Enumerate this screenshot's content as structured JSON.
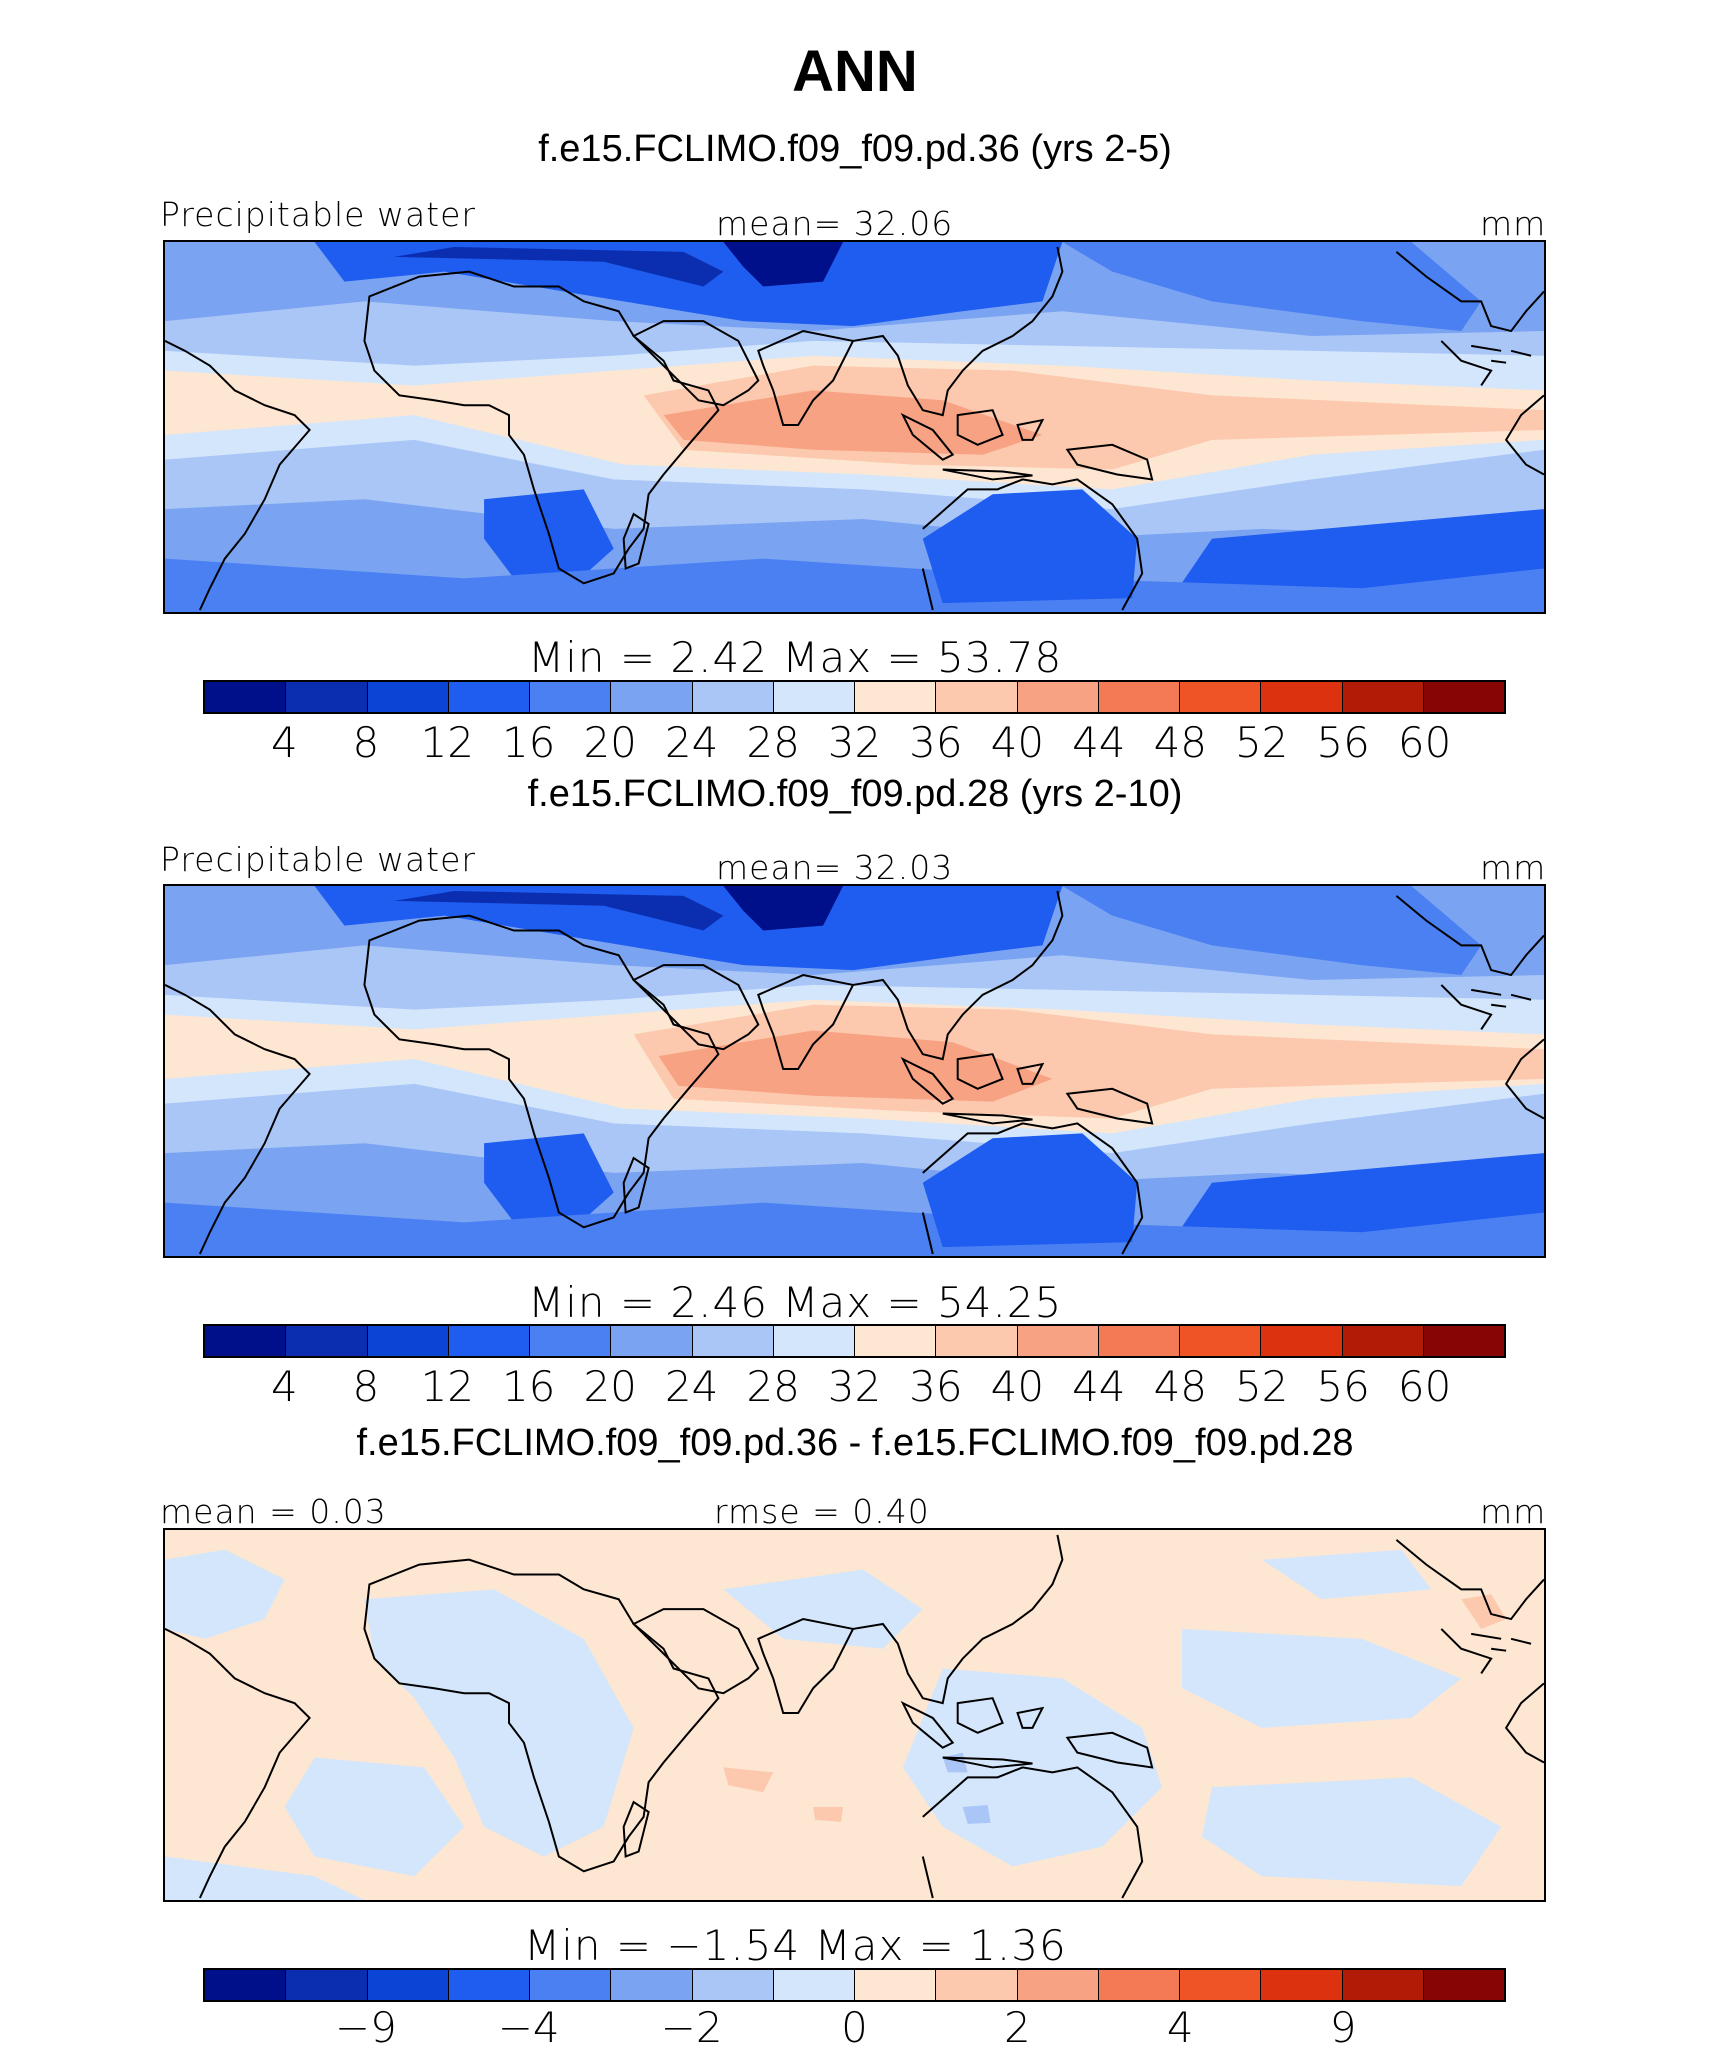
{
  "title": "ANN",
  "colors": {
    "scale": [
      "#000f8a",
      "#0a2eaf",
      "#0a45d6",
      "#1f5cf0",
      "#4a80f2",
      "#7aa4f2",
      "#aac6f6",
      "#d4e6fc",
      "#fde6d2",
      "#fcc8ae",
      "#f7a283",
      "#f37a55",
      "#ef5426",
      "#dc3210",
      "#b21c07",
      "#870503"
    ],
    "coast": "#000000"
  },
  "panels": [
    {
      "subtitle": "f.e15.FCLIMO.f09_f09.pd.36 (yrs 2-5)",
      "left_label": "Precipitable water",
      "center_label": "mean=   32.06",
      "units": "mm",
      "minmax": "Min  =     2.42  Max  =    53.78",
      "ticks": [
        "4",
        "8",
        "12",
        "16",
        "20",
        "24",
        "28",
        "32",
        "36",
        "40",
        "44",
        "48",
        "52",
        "56",
        "60"
      ]
    },
    {
      "subtitle": "f.e15.FCLIMO.f09_f09.pd.28 (yrs 2-10)",
      "left_label": "Precipitable water",
      "center_label": "mean=   32.03",
      "units": "mm",
      "minmax": "Min  =     2.46  Max  =    54.25",
      "ticks": [
        "4",
        "8",
        "12",
        "16",
        "20",
        "24",
        "28",
        "32",
        "36",
        "40",
        "44",
        "48",
        "52",
        "56",
        "60"
      ]
    },
    {
      "subtitle": "f.e15.FCLIMO.f09_f09.pd.36 - f.e15.FCLIMO.f09_f09.pd.28",
      "left_label": "mean  =    0.03",
      "center_label": "rmse  =    0.40",
      "units": "mm",
      "minmax": "Min  =   −1.54  Max  =      1.36",
      "ticks": [
        "−9",
        "",
        "−4",
        "",
        "−2",
        "",
        "0",
        "",
        "2",
        "",
        "4",
        "",
        "9",
        ""
      ]
    }
  ],
  "chart_data": [
    {
      "type": "heatmap",
      "title": "ANN",
      "subtitle": "f.e15.FCLIMO.f09_f09.pd.36 (yrs 2-5)",
      "variable": "Precipitable water",
      "units": "mm",
      "mean": 32.06,
      "min": 2.42,
      "max": 53.78,
      "contour_levels": [
        4,
        8,
        12,
        16,
        20,
        24,
        28,
        32,
        36,
        40,
        44,
        48,
        52,
        56,
        60
      ]
    },
    {
      "type": "heatmap",
      "subtitle": "f.e15.FCLIMO.f09_f09.pd.28 (yrs 2-10)",
      "variable": "Precipitable water",
      "units": "mm",
      "mean": 32.03,
      "min": 2.46,
      "max": 54.25,
      "contour_levels": [
        4,
        8,
        12,
        16,
        20,
        24,
        28,
        32,
        36,
        40,
        44,
        48,
        52,
        56,
        60
      ]
    },
    {
      "type": "heatmap",
      "subtitle": "f.e15.FCLIMO.f09_f09.pd.36 - f.e15.FCLIMO.f09_f09.pd.28",
      "units": "mm",
      "mean": 0.03,
      "rmse": 0.4,
      "min": -1.54,
      "max": 1.36,
      "tick_labels": [
        "-9",
        "-4",
        "-2",
        "0",
        "2",
        "4",
        "9"
      ]
    }
  ]
}
